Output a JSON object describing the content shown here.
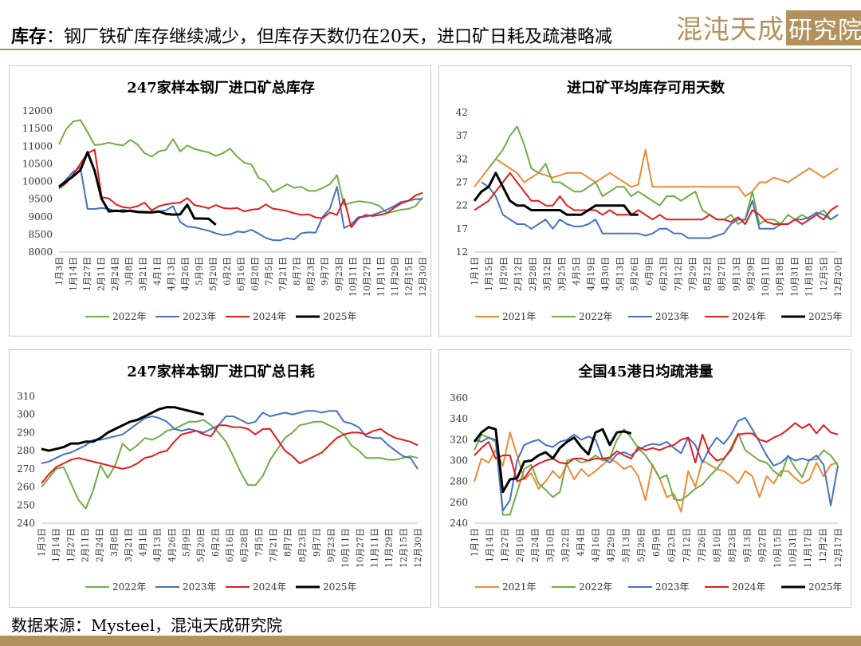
{
  "header": {
    "label": "库存",
    "colon": "：",
    "text": "钢厂铁矿库存继续减少，但库存天数仍在20天，进口矿日耗及疏港略减",
    "logo_text": "混沌天成",
    "logo_box": "研究院"
  },
  "footer": {
    "source": "数据来源：Mysteel，混沌天成研究院"
  },
  "colors": {
    "2021年": "#ed8b35",
    "2022年": "#70ad47",
    "2023年": "#4472c4",
    "2024年": "#e31c1c",
    "2025年": "#000000",
    "brand": "#b3915c"
  },
  "chart_data": [
    {
      "type": "line",
      "title": "247家样本钢厂进口矿总库存",
      "ylim": [
        8000,
        12000
      ],
      "yticks": [
        8000,
        8500,
        9000,
        9500,
        10000,
        10500,
        11000,
        11500,
        12000
      ],
      "x_count": 52,
      "xtick_labels": [
        "1月3日",
        "1月14日",
        "1月27日",
        "2月11日",
        "2月24日",
        "3月8日",
        "3月21日",
        "4月1日",
        "4月13日",
        "4月26日",
        "5月9日",
        "5月20日",
        "6月2日",
        "6月16日",
        "6月28日",
        "7月5日",
        "7月21日",
        "8月7日",
        "8月23日",
        "9月7日",
        "9月23日",
        "10月11日",
        "10月27日",
        "11月11日",
        "11月29日",
        "12月15日",
        "12月30日"
      ],
      "legend": "bottom",
      "grid": false,
      "series": [
        {
          "name": "2022年",
          "values": [
            11050,
            11480,
            11700,
            11740,
            11400,
            11030,
            11050,
            11100,
            11050,
            11020,
            11180,
            11050,
            10800,
            10700,
            10850,
            10900,
            11200,
            10850,
            11020,
            10920,
            10870,
            10820,
            10720,
            10800,
            10930,
            10700,
            10530,
            10480,
            10100,
            10000,
            9700,
            9800,
            9920,
            9820,
            9850,
            9730,
            9730,
            9820,
            9920,
            10180,
            9330,
            9400,
            9440,
            9420,
            9380,
            9300,
            9100,
            9150,
            9200,
            9220,
            9300,
            9550
          ]
        },
        {
          "name": "2023年",
          "values": [
            9850,
            10050,
            10280,
            10400,
            9220,
            9220,
            9250,
            9220,
            9150,
            9200,
            9150,
            9120,
            9110,
            9120,
            9150,
            9180,
            9300,
            8850,
            8720,
            8700,
            8650,
            8600,
            8530,
            8480,
            8500,
            8580,
            8560,
            8630,
            8520,
            8400,
            8340,
            8330,
            8390,
            8360,
            8530,
            8560,
            8550,
            9000,
            9230,
            9850,
            8680,
            8780,
            8990,
            9000,
            9050,
            9120,
            9200,
            9300,
            9420,
            9450,
            9500,
            9500
          ]
        },
        {
          "name": "2024年",
          "values": [
            9800,
            9950,
            10200,
            10500,
            10800,
            10900,
            9550,
            9520,
            9350,
            9270,
            9250,
            9300,
            9400,
            9180,
            9300,
            9350,
            9380,
            9400,
            9530,
            9330,
            9290,
            9240,
            9330,
            9250,
            9230,
            9250,
            9150,
            9200,
            9220,
            9350,
            9230,
            9200,
            9160,
            9100,
            9050,
            9070,
            8980,
            8960,
            9120,
            9050,
            9500,
            8700,
            8950,
            9050,
            9020,
            9050,
            9100,
            9250,
            9380,
            9450,
            9600,
            9680
          ]
        },
        {
          "name": "2025年",
          "values": [
            9850,
            10000,
            10150,
            10320,
            10830,
            10300,
            9500,
            9150,
            9170,
            9150,
            9170,
            9140,
            9130,
            9120,
            9150,
            9080,
            9060,
            9070,
            9340,
            8950,
            8950,
            8940,
            8770
          ]
        }
      ]
    },
    {
      "type": "line",
      "title": "进口矿平均库存可用天数",
      "ylim": [
        12,
        42
      ],
      "yticks": [
        12,
        17,
        22,
        27,
        32,
        37,
        42
      ],
      "x_count": 52,
      "xtick_labels": [
        "1月1日",
        "1月15日",
        "1月29日",
        "2月12日",
        "2月28日",
        "3月12日",
        "3月25日",
        "4月5日",
        "4月19日",
        "4月30日",
        "5月13日",
        "5月26日",
        "6月9日",
        "6月23日",
        "7月12日",
        "7月29日",
        "8月12日",
        "8月27日",
        "9月13日",
        "9月29日",
        "10月11日",
        "10月18日",
        "10月31日",
        "11月18日",
        "12月5日",
        "12月20日"
      ],
      "legend": "bottom",
      "grid": false,
      "series": [
        {
          "name": "2021年",
          "values": [
            26,
            28,
            30,
            32,
            31,
            30,
            29,
            27,
            28,
            29,
            28.5,
            28,
            28.5,
            29,
            29,
            29,
            28,
            27,
            28,
            29,
            28,
            27,
            26,
            26.5,
            34,
            26,
            26,
            26,
            26,
            26,
            26,
            26,
            26,
            26,
            26,
            26,
            26,
            26,
            24,
            25,
            27,
            27,
            28,
            27.5,
            27,
            28,
            29,
            30,
            29,
            28,
            29,
            30
          ]
        },
        {
          "name": "2022年",
          "values": [
            null,
            null,
            30,
            32,
            34,
            37,
            39,
            35,
            30,
            29,
            31,
            27,
            27,
            26,
            25,
            25,
            26,
            27,
            24,
            25,
            26,
            26,
            24,
            25,
            24,
            23,
            22,
            24,
            24,
            23,
            24,
            25,
            21,
            20,
            19,
            19,
            20,
            18,
            19,
            25,
            18,
            19,
            19,
            18,
            20,
            19,
            20,
            19,
            20,
            21,
            19,
            20
          ]
        },
        {
          "name": "2023年",
          "values": [
            null,
            27,
            26,
            24,
            20,
            19,
            18,
            18,
            17,
            18,
            19,
            17,
            19,
            18,
            17.5,
            17.5,
            18,
            19,
            16,
            16,
            16,
            16,
            16,
            16,
            15.5,
            16,
            17,
            17,
            16,
            16,
            15,
            15,
            15,
            15,
            15.5,
            16,
            18,
            19,
            19,
            23,
            17,
            17,
            17,
            18,
            18,
            19,
            19,
            19.5,
            20.5,
            20,
            19,
            20
          ]
        },
        {
          "name": "2024年",
          "values": [
            21,
            22,
            23,
            25,
            27,
            29,
            27,
            25,
            23,
            23,
            22,
            22,
            24,
            22,
            21,
            21,
            21,
            21,
            20,
            21,
            20,
            20,
            20,
            21,
            20,
            19,
            20,
            19,
            19,
            19,
            19,
            19,
            19,
            20,
            19,
            19,
            18.5,
            19.5,
            18,
            21,
            20,
            18.5,
            18,
            18,
            18,
            19,
            18,
            19,
            20,
            19,
            21,
            22
          ]
        },
        {
          "name": "2025年",
          "values": [
            23,
            25,
            26,
            29,
            26,
            23,
            22,
            22,
            21,
            21,
            21,
            21,
            21,
            20,
            20,
            20,
            21,
            22,
            22,
            22,
            22,
            22,
            20,
            20
          ]
        }
      ]
    },
    {
      "type": "line",
      "title": "247家样本钢厂进口矿总日耗",
      "ylim": [
        240,
        310
      ],
      "yticks": [
        240,
        250,
        260,
        270,
        280,
        290,
        300,
        310
      ],
      "x_count": 52,
      "xtick_labels": [
        "1月3日",
        "1月14日",
        "1月27日",
        "2月11日",
        "2月24日",
        "3月8日",
        "3月21日",
        "4月1日",
        "4月13日",
        "4月26日",
        "5月9日",
        "5月20日",
        "6月2日",
        "6月16日",
        "6月28日",
        "7月5日",
        "7月21日",
        "8月7日",
        "8月23日",
        "9月7日",
        "9月23日",
        "10月11日",
        "10月27日",
        "11月11日",
        "11月29日",
        "12月15日",
        "12月30日"
      ],
      "legend": "bottom",
      "grid": false,
      "series": [
        {
          "name": "2022年",
          "values": [
            260,
            265,
            270,
            271,
            262,
            253,
            248,
            258,
            272,
            265,
            272,
            284,
            280,
            283,
            287,
            286,
            288,
            291,
            292,
            294,
            296,
            296,
            297,
            294,
            290,
            285,
            277,
            268,
            261,
            261,
            266,
            275,
            281,
            287,
            290,
            294,
            295,
            296,
            296,
            294,
            292,
            289,
            283,
            280,
            276,
            276,
            276,
            275,
            275,
            276,
            277,
            276
          ]
        },
        {
          "name": "2023年",
          "values": [
            273,
            274,
            276,
            278,
            279,
            281,
            283,
            286,
            286,
            287,
            288,
            289,
            292,
            295,
            298,
            299,
            298,
            296,
            292,
            291,
            292,
            291,
            290,
            292,
            294,
            299,
            299,
            297,
            295,
            296,
            301,
            299,
            300,
            301,
            300,
            301,
            302,
            302,
            301,
            302,
            302,
            296,
            295,
            293,
            288,
            287,
            287,
            283,
            280,
            277,
            276,
            270
          ]
        },
        {
          "name": "2024年",
          "values": [
            262,
            267,
            271,
            273,
            275,
            276,
            275,
            274,
            273,
            272,
            271,
            270,
            271,
            273,
            276,
            277,
            279,
            280,
            285,
            289,
            290,
            291,
            289,
            288,
            294,
            294,
            293,
            293,
            292,
            289,
            292,
            292,
            286,
            280,
            277,
            273,
            275,
            277,
            279,
            283,
            287,
            289,
            290,
            290,
            289,
            291,
            292,
            289,
            287,
            286,
            285,
            283
          ]
        },
        {
          "name": "2025年",
          "values": [
            281,
            280,
            281,
            282,
            284,
            284,
            285,
            285,
            287,
            290,
            292,
            294,
            296,
            297,
            299,
            301,
            303,
            304,
            304,
            303,
            302,
            301,
            300
          ]
        }
      ]
    },
    {
      "type": "line",
      "title": "全国45港日均疏港量",
      "ylim": [
        240,
        360
      ],
      "yticks": [
        240,
        260,
        280,
        300,
        320,
        340,
        360
      ],
      "x_count": 52,
      "xtick_labels": [
        "1月1日",
        "1月14日",
        "1月27日",
        "2月10日",
        "2月24日",
        "3月10日",
        "3月22日",
        "4月4日",
        "4月16日",
        "4月29日",
        "5月13日",
        "5月26日",
        "6月9日",
        "6月23日",
        "7月12日",
        "7月26日",
        "8月10日",
        "8月23日",
        "9月13日",
        "9月27日",
        "10月15日",
        "10月31日",
        "11月17日",
        "12月2日",
        "12月17日"
      ],
      "legend": "bottom",
      "grid": false,
      "series": [
        {
          "name": "2021年",
          "values": [
            280,
            302,
            298,
            310,
            295,
            327,
            305,
            282,
            288,
            273,
            280,
            290,
            283,
            296,
            282,
            292,
            285,
            290,
            296,
            302,
            298,
            292,
            295,
            285,
            262,
            296,
            283,
            265,
            268,
            251,
            290,
            275,
            300,
            296,
            292,
            290,
            285,
            278,
            290,
            285,
            265,
            285,
            278,
            290,
            290,
            283,
            278,
            282,
            298,
            285,
            296,
            298
          ]
        },
        {
          "name": "2022年",
          "values": [
            310,
            325,
            322,
            318,
            248,
            248,
            270,
            292,
            296,
            278,
            272,
            265,
            270,
            300,
            302,
            298,
            300,
            305,
            300,
            302,
            320,
            330,
            322,
            312,
            305,
            295,
            283,
            286,
            263,
            262,
            267,
            273,
            277,
            285,
            292,
            301,
            312,
            326,
            310,
            305,
            300,
            298,
            290,
            285,
            305,
            293,
            284,
            301,
            301,
            310,
            305,
            295
          ]
        },
        {
          "name": "2023年",
          "values": [
            320,
            318,
            322,
            320,
            252,
            262,
            300,
            315,
            318,
            320,
            315,
            313,
            318,
            320,
            325,
            320,
            323,
            320,
            302,
            298,
            306,
            308,
            305,
            310,
            314,
            316,
            315,
            318,
            312,
            307,
            322,
            315,
            298,
            312,
            322,
            316,
            325,
            338,
            341,
            330,
            318,
            305,
            295,
            298,
            304,
            300,
            302,
            300,
            305,
            296,
            257,
            295
          ]
        },
        {
          "name": "2024年",
          "values": [
            305,
            312,
            318,
            302,
            305,
            305,
            280,
            283,
            293,
            297,
            300,
            302,
            298,
            297,
            302,
            302,
            300,
            302,
            302,
            303,
            309,
            305,
            302,
            313,
            310,
            312,
            310,
            313,
            315,
            320,
            322,
            298,
            325,
            307,
            300,
            302,
            310,
            325,
            326,
            326,
            320,
            318,
            322,
            325,
            330,
            336,
            331,
            335,
            326,
            334,
            327,
            325
          ]
        },
        {
          "name": "2025年",
          "values": [
            318,
            327,
            332,
            330,
            270,
            282,
            283,
            299,
            300,
            305,
            308,
            302,
            312,
            318,
            322,
            313,
            306,
            327,
            330,
            315,
            327,
            328,
            326
          ]
        }
      ]
    }
  ],
  "layout_order": [
    "2021年",
    "2022年",
    "2023年",
    "2024年",
    "2025年"
  ]
}
